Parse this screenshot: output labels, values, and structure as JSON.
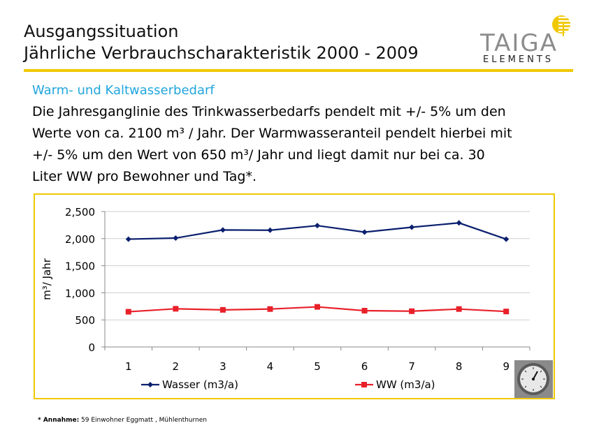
{
  "header": {
    "title_line1": "Ausgangssituation",
    "title_line2": "Jährliche Verbrauchscharakteristik 2000 - 2009"
  },
  "logo": {
    "name": "TAIGA",
    "sub": "ELEMENTS",
    "color_main": "#8c8c8c",
    "color_accent": "#f0c800"
  },
  "subtitle": "Warm- und Kaltwasserbedarf",
  "body": {
    "lines": [
      "Die Jahresganglinie des Trinkwasserbedarfs pendelt mit +/- 5% um den",
      "Werte von ca. 2100 m³ / Jahr.  Der Warmwasseranteil pendelt hierbei mit",
      "+/- 5% um den Wert von 650 m³/ Jahr und liegt damit nur bei ca. 30",
      "Liter WW pro Bewohner und Tag*."
    ]
  },
  "chart_data": {
    "type": "line",
    "x": [
      1,
      2,
      3,
      4,
      5,
      6,
      7,
      8,
      9
    ],
    "series": [
      {
        "name": "Wasser (m3/a)",
        "values": [
          1990,
          2010,
          2160,
          2155,
          2240,
          2120,
          2210,
          2290,
          1990
        ],
        "color": "#0a1f6e",
        "marker": "diamond"
      },
      {
        "name": "WW (m3/a)",
        "values": [
          650,
          705,
          685,
          700,
          740,
          670,
          660,
          700,
          655
        ],
        "color": "#e8202a",
        "marker": "square"
      }
    ],
    "ylabel": "m³/ Jahr",
    "ylim": [
      0,
      2500
    ],
    "yticks": [
      "0",
      "500",
      "1,000",
      "1,500",
      "2,000",
      "2,500"
    ],
    "ytick_values": [
      0,
      500,
      1000,
      1500,
      2000,
      2500
    ],
    "xticks": [
      "1",
      "2",
      "3",
      "4",
      "5",
      "6",
      "7",
      "8",
      "9"
    ],
    "grid": true,
    "legend_position": "bottom"
  },
  "footnote": {
    "label": "* Annahme:",
    "text": " 59 Einwohner Eggmatt , Mühlenthurnen"
  }
}
